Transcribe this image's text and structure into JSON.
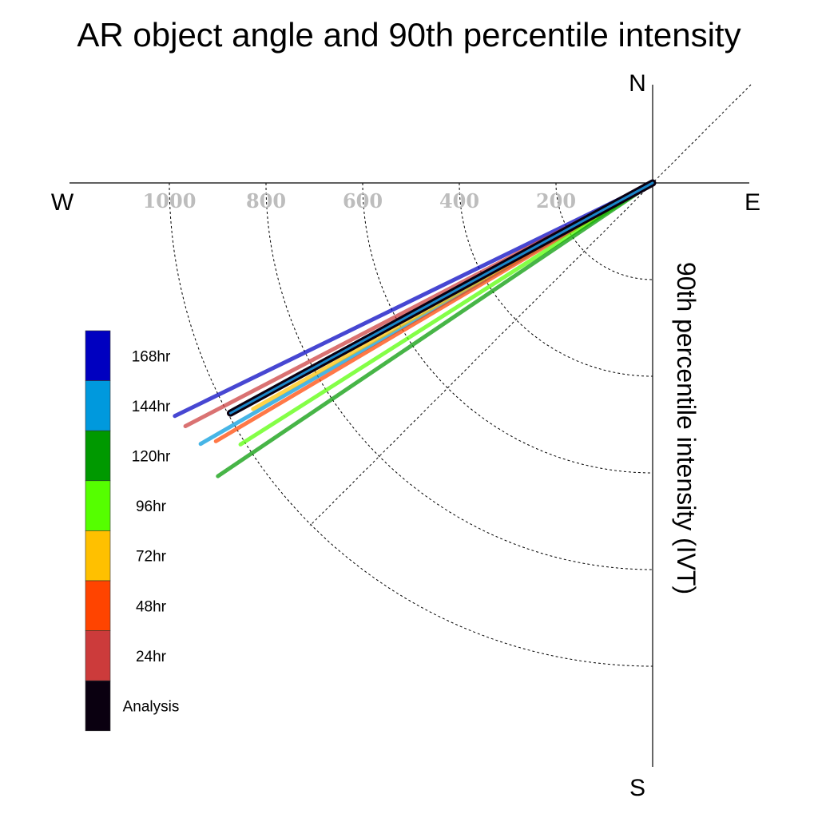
{
  "chart_data": {
    "type": "polar-line",
    "title": "AR object angle and 90th percentile intensity",
    "radial_axis_label": "90th percentile intensity (IVT)",
    "directions": {
      "north": "N",
      "south": "S",
      "east": "E",
      "west": "W"
    },
    "radial_ticks": [
      200,
      400,
      600,
      800,
      1000
    ],
    "radial_tick_labels": [
      "200",
      "400",
      "600",
      "800",
      "1000"
    ],
    "radial_max": 1200,
    "angle_reference": "degrees clockwise from east toward south",
    "diagonal_guides": [
      "NE-SW"
    ],
    "series": [
      {
        "name": "168hr",
        "color": "#0000c0",
        "angle_deg": 26.0,
        "intensity": 1100,
        "highlight": false
      },
      {
        "name": "24hr",
        "color": "#cc3b3b",
        "angle_deg": 27.5,
        "intensity": 1090,
        "highlight": false
      },
      {
        "name": "144hr",
        "color": "#0099dd",
        "angle_deg": 30.0,
        "intensity": 1080,
        "highlight": false
      },
      {
        "name": "Analysis",
        "color": "#0a0010",
        "angle_deg": 28.6,
        "intensity": 995,
        "highlight": true
      },
      {
        "name": "72hr",
        "color": "#ffc000",
        "angle_deg": 29.5,
        "intensity": 950,
        "highlight": false
      },
      {
        "name": "48hr",
        "color": "#ff4400",
        "angle_deg": 30.6,
        "intensity": 1050,
        "highlight": false
      },
      {
        "name": "96hr",
        "color": "#55ff00",
        "angle_deg": 32.4,
        "intensity": 1010,
        "highlight": false
      },
      {
        "name": "120hr",
        "color": "#009900",
        "angle_deg": 34.0,
        "intensity": 1085,
        "highlight": false
      }
    ],
    "legend": {
      "placement": "lower-left",
      "entries": [
        {
          "label": "168hr",
          "color": "#0000c0"
        },
        {
          "label": "144hr",
          "color": "#0099dd"
        },
        {
          "label": "120hr",
          "color": "#009900"
        },
        {
          "label": "96hr",
          "color": "#55ff00"
        },
        {
          "label": "72hr",
          "color": "#ffc000"
        },
        {
          "label": "48hr",
          "color": "#ff4400"
        },
        {
          "label": "24hr",
          "color": "#cc3b3b"
        },
        {
          "label": "Analysis",
          "color": "#0a0010"
        }
      ]
    }
  }
}
